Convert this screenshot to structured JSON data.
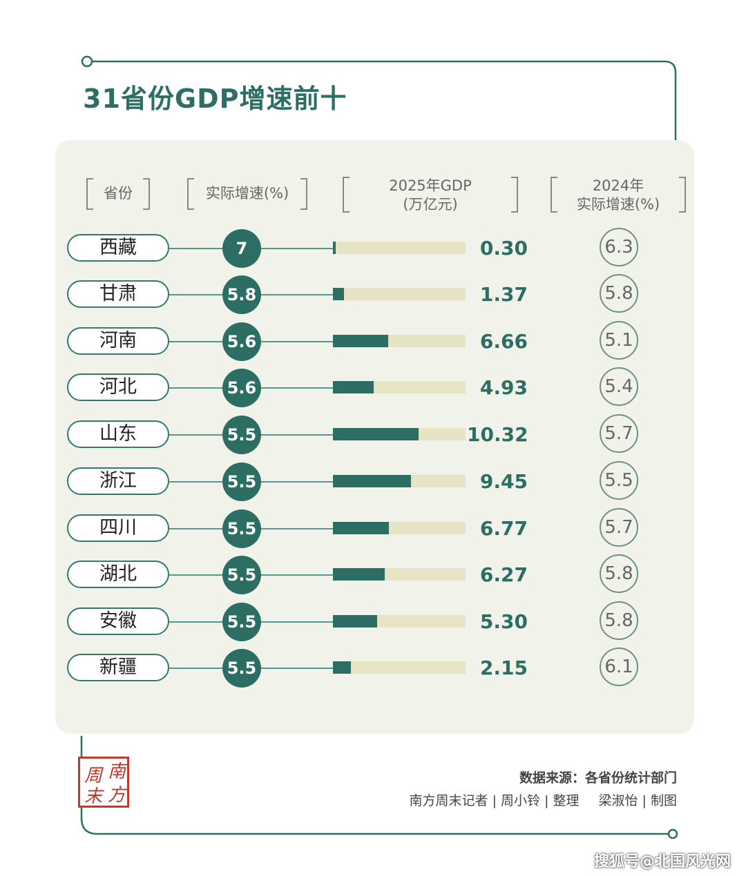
{
  "title": "31省份GDP增速前十",
  "headers": {
    "province": "省份",
    "growth": "实际增速(%)",
    "gdp_line1": "2025年GDP",
    "gdp_line2": "(万亿元)",
    "prev_line1": "2024年",
    "prev_line2": "实际增速(%)"
  },
  "colors": {
    "accent": "#2c6e63",
    "bar_track": "#e7e4c6",
    "panel": "#f1f2ea",
    "seal": "#c0392b"
  },
  "chart_data": {
    "type": "table",
    "title": "31省份GDP增速前十",
    "columns": [
      "省份",
      "实际增速(%)",
      "2025年GDP(万亿元)",
      "2024年实际增速(%)"
    ],
    "rows": [
      {
        "province": "西藏",
        "growth": "7",
        "gdp": "0.30",
        "gdp_value": 0.3,
        "prev": "6.3"
      },
      {
        "province": "甘肃",
        "growth": "5.8",
        "gdp": "1.37",
        "gdp_value": 1.37,
        "prev": "5.8"
      },
      {
        "province": "河南",
        "growth": "5.6",
        "gdp": "6.66",
        "gdp_value": 6.66,
        "prev": "5.1"
      },
      {
        "province": "河北",
        "growth": "5.6",
        "gdp": "4.93",
        "gdp_value": 4.93,
        "prev": "5.4"
      },
      {
        "province": "山东",
        "growth": "5.5",
        "gdp": "10.32",
        "gdp_value": 10.32,
        "prev": "5.7"
      },
      {
        "province": "浙江",
        "growth": "5.5",
        "gdp": "9.45",
        "gdp_value": 9.45,
        "prev": "5.5"
      },
      {
        "province": "四川",
        "growth": "5.5",
        "gdp": "6.77",
        "gdp_value": 6.77,
        "prev": "5.7"
      },
      {
        "province": "湖北",
        "growth": "5.5",
        "gdp": "6.27",
        "gdp_value": 6.27,
        "prev": "5.8"
      },
      {
        "province": "安徽",
        "growth": "5.5",
        "gdp": "5.30",
        "gdp_value": 5.3,
        "prev": "5.8"
      },
      {
        "province": "新疆",
        "growth": "5.5",
        "gdp": "2.15",
        "gdp_value": 2.15,
        "prev": "6.1"
      }
    ],
    "bar_max": 16
  },
  "footer": {
    "source": "数据来源：各省份统计部门",
    "credit_reporter": "南方周末记者 | 周小铃 | 整理",
    "credit_design": "梁淑怡 | 制图"
  },
  "seal": {
    "chars": [
      "南",
      "周",
      "方",
      "末"
    ]
  },
  "watermark": "搜狐号@北国风光网"
}
